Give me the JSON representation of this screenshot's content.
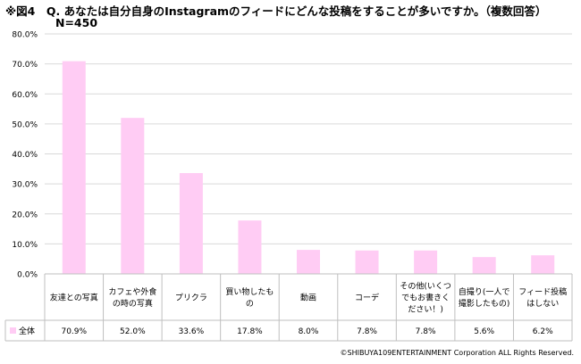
{
  "header": {
    "title_line1": "※図4　Q. あなたは自分自身のInstagramのフィードにどんな投稿をすることが多いですか。（複数回答）",
    "title_line2": "N=450"
  },
  "footer": {
    "credit": "©SHIBUYA109ENTERTAINMENT Corporation  ALL Rights Reserved."
  },
  "colors": {
    "bar": "#ffccf4",
    "grid": "#d9d9d9",
    "table_border": "#bfbfbf"
  },
  "chart_data": {
    "type": "bar",
    "categories": [
      [
        "友達との写真"
      ],
      [
        "カフェや外食",
        "の時の写真"
      ],
      [
        "プリクラ"
      ],
      [
        "買い物したも",
        "の"
      ],
      [
        "動画"
      ],
      [
        "コーデ"
      ],
      [
        "その他(いくつ",
        "でもお書きく",
        "ださい！)"
      ],
      [
        "自撮り(一人で",
        "撮影したもの)"
      ],
      [
        "フィード投稿",
        "はしない"
      ]
    ],
    "series": [
      {
        "name": "全体",
        "values": [
          70.9,
          52.0,
          33.6,
          17.8,
          8.0,
          7.8,
          7.8,
          5.6,
          6.2
        ],
        "labels": [
          "70.9%",
          "52.0%",
          "33.6%",
          "17.8%",
          "8.0%",
          "7.8%",
          "7.8%",
          "5.6%",
          "6.2%"
        ]
      }
    ],
    "ylim": [
      0,
      80
    ],
    "yticks": [
      0,
      10,
      20,
      30,
      40,
      50,
      60,
      70,
      80
    ],
    "ytick_labels": [
      "0.0%",
      "10.0%",
      "20.0%",
      "30.0%",
      "40.0%",
      "50.0%",
      "60.0%",
      "70.0%",
      "80.0%"
    ],
    "grid": true,
    "legend": "data-table"
  }
}
